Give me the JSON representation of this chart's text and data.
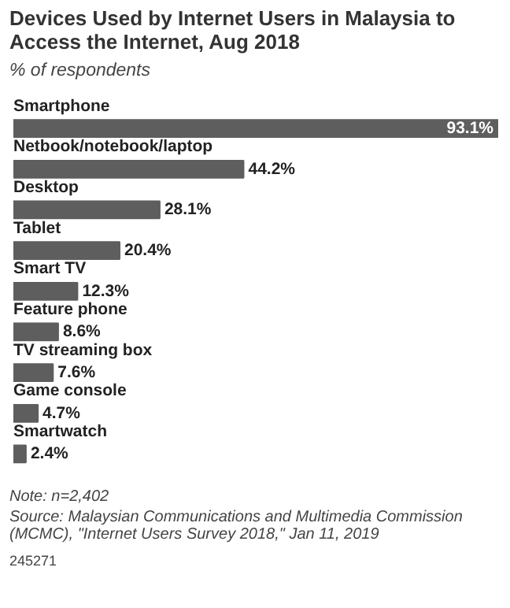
{
  "chart_data": {
    "type": "bar",
    "orientation": "horizontal",
    "title": "Devices Used by Internet Users in Malaysia to Access the Internet, Aug 2018",
    "subtitle": "% of respondents",
    "categories": [
      "Smartphone",
      "Netbook/notebook/laptop",
      "Desktop",
      "Tablet",
      "Smart TV",
      "Feature phone",
      "TV streaming box",
      "Game console",
      "Smartwatch"
    ],
    "values": [
      93.1,
      44.2,
      28.1,
      20.4,
      12.3,
      8.6,
      7.6,
      4.7,
      2.4
    ],
    "value_labels": [
      "93.1%",
      "44.2%",
      "28.1%",
      "20.4%",
      "12.3%",
      "8.6%",
      "7.6%",
      "4.7%",
      "2.4%"
    ],
    "color": "#5e5e5e",
    "annotations": [
      "Note: n=2,402",
      "Source: Malaysian Communications and Multimedia Commission (MCMC), \"Internet Users Survey 2018,\" Jan 11, 2019",
      "245271"
    ]
  }
}
